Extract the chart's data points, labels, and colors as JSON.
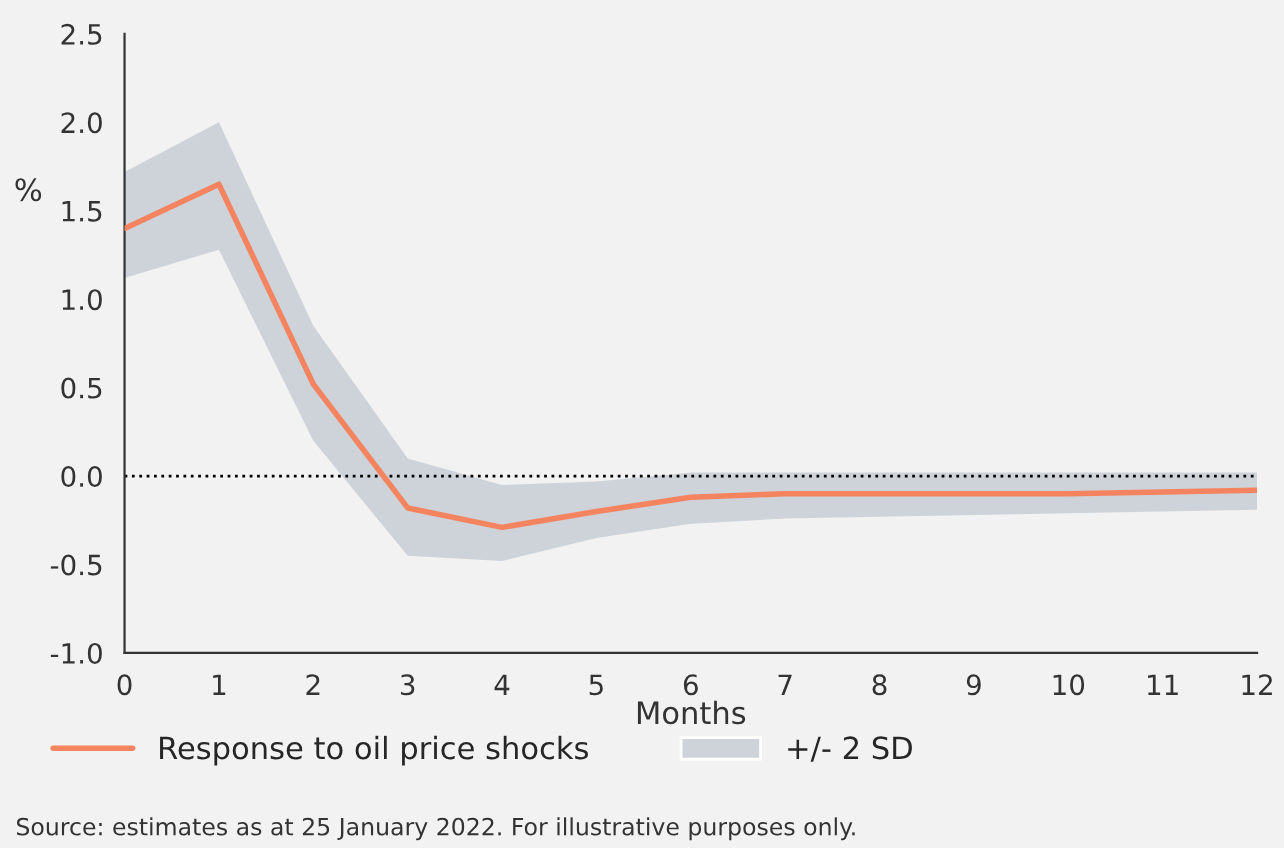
{
  "chart_data": {
    "type": "line",
    "ylabel": "%",
    "xlabel": "Months",
    "x": [
      0,
      1,
      2,
      3,
      4,
      5,
      6,
      7,
      8,
      9,
      10,
      11,
      12
    ],
    "series": [
      {
        "name": "Response to oil price shocks",
        "color": "#f4845f",
        "values": [
          1.4,
          1.65,
          0.52,
          -0.18,
          -0.29,
          -0.2,
          -0.12,
          -0.1,
          -0.1,
          -0.1,
          -0.1,
          -0.09,
          -0.08
        ],
        "lower": [
          1.12,
          1.28,
          0.2,
          -0.45,
          -0.48,
          -0.35,
          -0.27,
          -0.24,
          -0.23,
          -0.22,
          -0.21,
          -0.2,
          -0.19
        ],
        "upper": [
          1.72,
          2.0,
          0.85,
          0.1,
          -0.05,
          -0.03,
          0.02,
          0.02,
          0.02,
          0.02,
          0.02,
          0.02,
          0.02
        ]
      }
    ],
    "xlim": [
      0,
      12
    ],
    "xticks": [
      0,
      1,
      2,
      3,
      4,
      5,
      6,
      7,
      8,
      9,
      10,
      11,
      12
    ],
    "ylim": [
      -1.0,
      2.5
    ],
    "yticks": [
      {
        "value": -1.0,
        "label": "-1.0"
      },
      {
        "value": -0.5,
        "label": "-0.5"
      },
      {
        "value": 0.0,
        "label": "0.0"
      },
      {
        "value": 0.5,
        "label": "0.5"
      },
      {
        "value": 1.0,
        "label": "1.0"
      },
      {
        "value": 1.5,
        "label": "1.5"
      },
      {
        "value": 2.0,
        "label": "2.0"
      },
      {
        "value": 2.5,
        "label": "2.5"
      }
    ],
    "ref_lines": [
      {
        "axis": "y",
        "value": 0.0,
        "color": "#000000",
        "line_style": "dotted"
      }
    ],
    "grid": false,
    "legend": "bottom",
    "marker": "none",
    "line_style": "solid",
    "annotations": [
      "+/- 2 SD",
      "Source: estimates as at 25 January 2022. For illustrative purposes only."
    ]
  }
}
